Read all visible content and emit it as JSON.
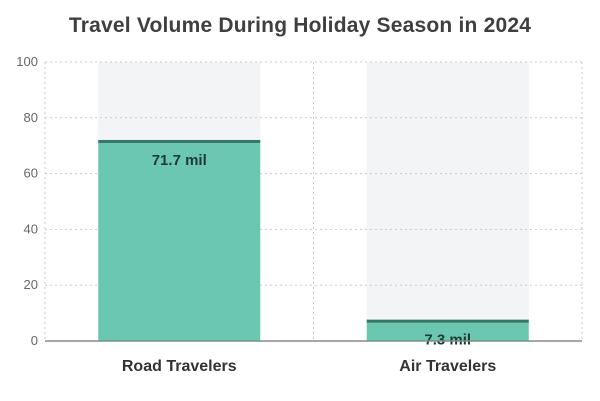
{
  "chart_data": {
    "type": "bar",
    "title": "Travel Volume During Holiday Season in 2024",
    "categories": [
      "Road Travelers",
      "Air Travelers"
    ],
    "values": [
      71.7,
      7.3
    ],
    "data_labels": [
      "71.7 mil",
      "7.3 mil"
    ],
    "y_ticks": [
      "0",
      "20",
      "40",
      "60",
      "80",
      "100"
    ],
    "ylim": [
      0,
      100
    ],
    "xlabel": "",
    "ylabel": "",
    "grid": true,
    "legend": "none",
    "colors": {
      "bar_fill": "#6cc7b0",
      "bar_top": "#2e7a6b",
      "background_band": "#f3f4f6",
      "grid": "#c9c9c9",
      "axis": "#888888"
    }
  }
}
